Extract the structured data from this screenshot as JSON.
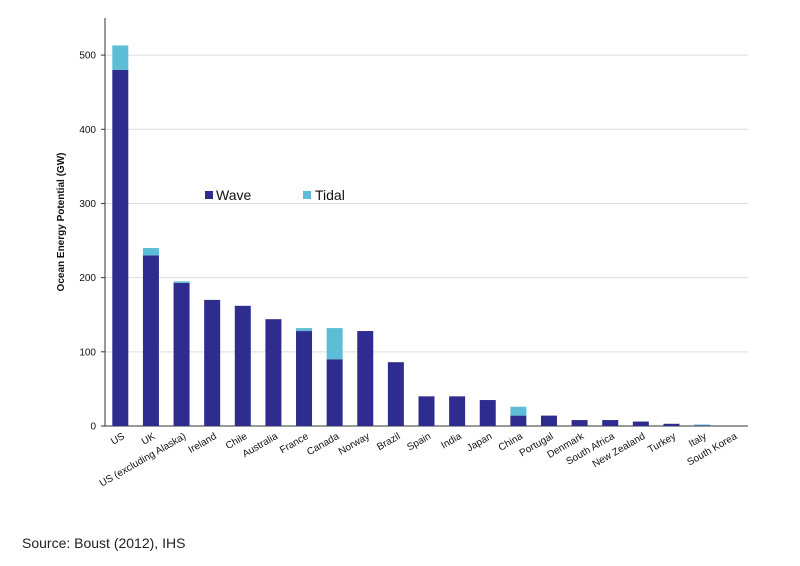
{
  "chart_data": {
    "type": "bar",
    "stacked": true,
    "ylabel": "Ocean Energy Potential (GW)",
    "xlabel": "",
    "ylim": [
      0,
      550
    ],
    "yticks": [
      0,
      100,
      200,
      300,
      400,
      500
    ],
    "grid": "horizontal",
    "legend_position": "inside-upper-middle",
    "categories": [
      "US",
      "UK",
      "US (excluding Alaska)",
      "Ireland",
      "Chile",
      "Australia",
      "France",
      "Canada",
      "Norway",
      "Brazil",
      "Spain",
      "India",
      "Japan",
      "China",
      "Portugal",
      "Denmark",
      "South Africa",
      "New Zealand",
      "Turkey",
      "Italy",
      "South Korea"
    ],
    "series": [
      {
        "name": "Wave",
        "color": "#2e2c8f",
        "values": [
          480,
          230,
          193,
          170,
          162,
          144,
          128,
          90,
          128,
          86,
          40,
          40,
          35,
          14,
          14,
          8,
          8,
          6,
          3,
          1,
          0
        ]
      },
      {
        "name": "Tidal",
        "color": "#5bbdd6",
        "values": [
          33,
          10,
          2,
          0,
          0,
          0,
          4,
          42,
          0,
          0,
          0,
          0,
          0,
          12,
          0,
          0,
          0,
          0,
          0,
          1,
          0
        ]
      }
    ]
  },
  "source": "Source: Boust (2012), IHS"
}
